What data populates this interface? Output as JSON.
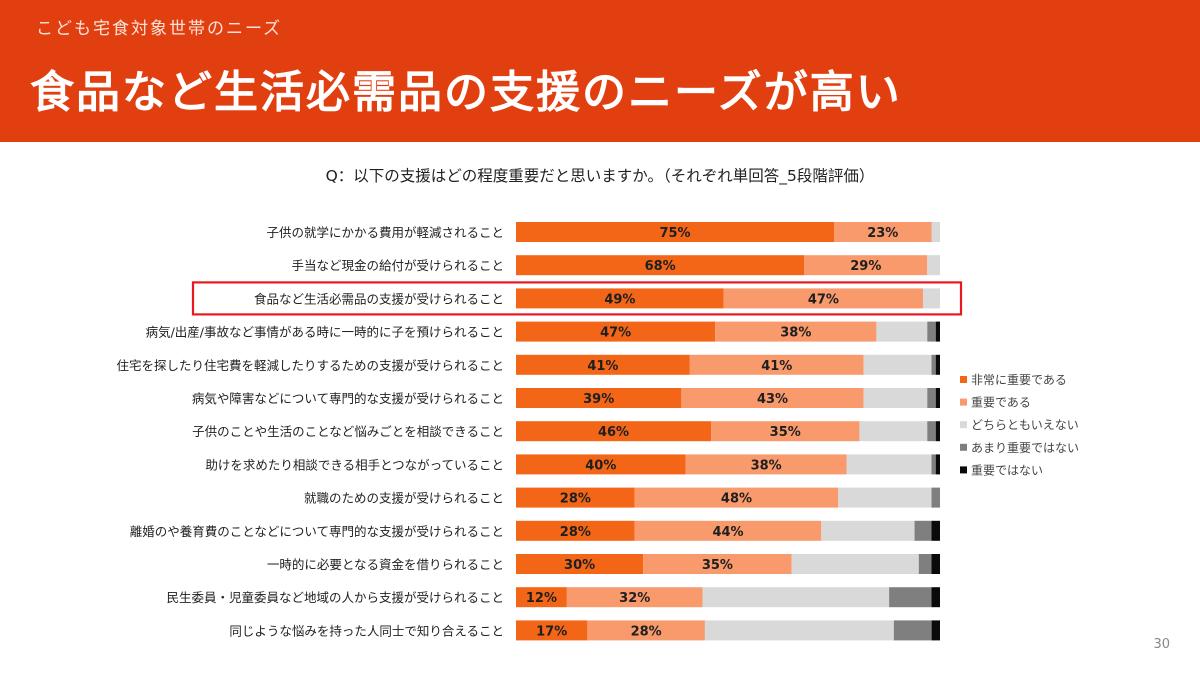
{
  "header": {
    "subtitle": "こども宅食対象世帯のニーズ",
    "title": "食品など生活必需品の支援のニーズが高い"
  },
  "question": "Q：以下の支援はどの程度重要だと思いますか。（それぞれ単回答_5段階評価）",
  "page_number": "30",
  "colors": {
    "header_bg": "#e23f11",
    "highlight": "#e8191f"
  },
  "chart_data": {
    "type": "bar",
    "orientation": "horizontal",
    "stacked": true,
    "normalized": true,
    "categories": [
      "子供の就学にかかる費用が軽減されること",
      "手当など現金の給付が受けられること",
      "食品など生活必需品の支援が受けられること",
      "病気/出産/事故など事情がある時に一時的に子を預けられること",
      "住宅を探したり住宅費を軽減したりするための支援が受けられること",
      "病気や障害などについて専門的な支援が受けられること",
      "子供のことや生活のことなど悩みごとを相談できること",
      "助けを求めたり相談できる相手とつながっていること",
      "就職のための支援が受けられること",
      "離婚のや養育費のことなどについて専門的な支援が受けられること",
      "一時的に必要となる資金を借りられること",
      "民生委員・児童委員など地域の人から支援が受けられること",
      "同じような悩みを持った人同士で知り合えること"
    ],
    "series": [
      {
        "name": "非常に重要である",
        "color": "#f46617",
        "values": [
          75,
          68,
          49,
          47,
          41,
          39,
          46,
          40,
          28,
          28,
          30,
          12,
          17
        ]
      },
      {
        "name": "重要である",
        "color": "#f89a6c",
        "values": [
          23,
          29,
          47,
          38,
          41,
          43,
          35,
          38,
          48,
          44,
          35,
          32,
          28
        ]
      },
      {
        "name": "どちらともいえない",
        "color": "#d9d9d9",
        "values": [
          2,
          3,
          4,
          12,
          16,
          15,
          16,
          20,
          22,
          22,
          30,
          44,
          45
        ]
      },
      {
        "name": "あまり重要ではない",
        "color": "#7f7f7f",
        "values": [
          0,
          0,
          0,
          2,
          1,
          2,
          2,
          1,
          2,
          4,
          3,
          10,
          9
        ]
      },
      {
        "name": "重要ではない",
        "color": "#0a0a0a",
        "values": [
          0,
          0,
          0,
          1,
          1,
          1,
          1,
          1,
          0,
          2,
          2,
          2,
          2
        ]
      }
    ],
    "data_labels": [
      [
        "75%",
        "23%"
      ],
      [
        "68%",
        "29%"
      ],
      [
        "49%",
        "47%"
      ],
      [
        "47%",
        "38%"
      ],
      [
        "41%",
        "41%"
      ],
      [
        "39%",
        "43%"
      ],
      [
        "46%",
        "35%"
      ],
      [
        "40%",
        "38%"
      ],
      [
        "28%",
        "48%"
      ],
      [
        "28%",
        "44%"
      ],
      [
        "30%",
        "35%"
      ],
      [
        "12%",
        "32%"
      ],
      [
        "17%",
        "28%"
      ]
    ],
    "highlighted_category_index": 2,
    "xlim": [
      0,
      100
    ],
    "legend_position": "right"
  }
}
